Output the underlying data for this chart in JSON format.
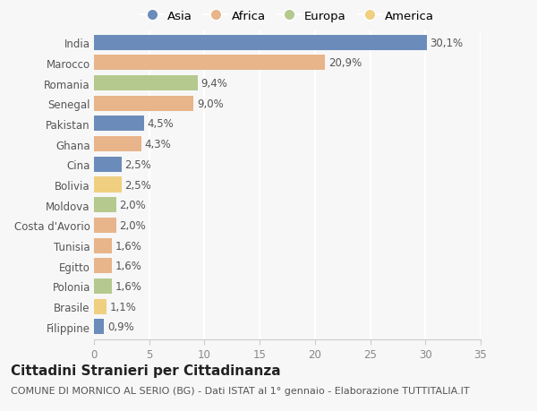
{
  "countries": [
    "India",
    "Marocco",
    "Romania",
    "Senegal",
    "Pakistan",
    "Ghana",
    "Cina",
    "Bolivia",
    "Moldova",
    "Costa d'Avorio",
    "Tunisia",
    "Egitto",
    "Polonia",
    "Brasile",
    "Filippine"
  ],
  "values": [
    30.1,
    20.9,
    9.4,
    9.0,
    4.5,
    4.3,
    2.5,
    2.5,
    2.0,
    2.0,
    1.6,
    1.6,
    1.6,
    1.1,
    0.9
  ],
  "labels": [
    "30,1%",
    "20,9%",
    "9,4%",
    "9,0%",
    "4,5%",
    "4,3%",
    "2,5%",
    "2,5%",
    "2,0%",
    "2,0%",
    "1,6%",
    "1,6%",
    "1,6%",
    "1,1%",
    "0,9%"
  ],
  "colors": [
    "#6b8cba",
    "#e8b48a",
    "#b5c98e",
    "#e8b48a",
    "#6b8cba",
    "#e8b48a",
    "#6b8cba",
    "#f0d080",
    "#b5c98e",
    "#e8b48a",
    "#e8b48a",
    "#e8b48a",
    "#b5c98e",
    "#f0d080",
    "#6b8cba"
  ],
  "legend_labels": [
    "Asia",
    "Africa",
    "Europa",
    "America"
  ],
  "legend_colors": [
    "#6b8cba",
    "#e8b48a",
    "#b5c98e",
    "#f0d080"
  ],
  "title": "Cittadini Stranieri per Cittadinanza",
  "subtitle": "COMUNE DI MORNICO AL SERIO (BG) - Dati ISTAT al 1° gennaio - Elaborazione TUTTITALIA.IT",
  "xlim": [
    0,
    35
  ],
  "xticks": [
    0,
    5,
    10,
    15,
    20,
    25,
    30,
    35
  ],
  "background_color": "#f7f7f7",
  "grid_color": "#ffffff",
  "label_fontsize": 8.5,
  "ytick_fontsize": 8.5,
  "xtick_fontsize": 8.5,
  "title_fontsize": 11,
  "subtitle_fontsize": 8,
  "bar_height": 0.75
}
